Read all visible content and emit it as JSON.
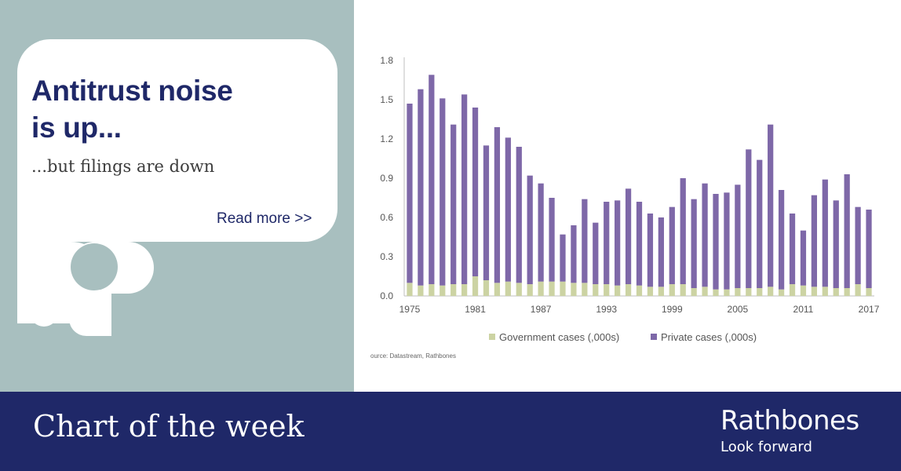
{
  "headline": "Antitrust noise\nis up...",
  "subheadline": "...but filings are down",
  "read_more": "Read more >>",
  "footer": {
    "title": "Chart of the week",
    "brand": "Rathbones",
    "tagline": "Look forward"
  },
  "colors": {
    "navy": "#1f2868",
    "panel": "#a8bfbf",
    "government": "#ccd3a3",
    "private": "#7e68a8"
  },
  "chart_data": {
    "type": "bar",
    "stacked": true,
    "categories": [
      1975,
      1976,
      1977,
      1978,
      1979,
      1980,
      1981,
      1982,
      1983,
      1984,
      1985,
      1986,
      1987,
      1988,
      1989,
      1990,
      1991,
      1992,
      1993,
      1994,
      1995,
      1996,
      1997,
      1998,
      1999,
      2000,
      2001,
      2002,
      2003,
      2004,
      2005,
      2006,
      2007,
      2008,
      2009,
      2010,
      2011,
      2012,
      2013,
      2014,
      2015,
      2016,
      2017
    ],
    "x_tick_labels": [
      "1975",
      "1981",
      "1987",
      "1993",
      "1999",
      "2005",
      "2011",
      "2017"
    ],
    "y_ticks": [
      "0.0",
      "0.3",
      "0.6",
      "0.9",
      "1.2",
      "1.5",
      "1.8"
    ],
    "ylim": [
      0,
      1.8
    ],
    "series": [
      {
        "name": "Government cases (,000s)",
        "color": "#ccd3a3",
        "values": [
          0.1,
          0.08,
          0.09,
          0.08,
          0.09,
          0.09,
          0.15,
          0.12,
          0.1,
          0.11,
          0.1,
          0.09,
          0.11,
          0.11,
          0.11,
          0.1,
          0.1,
          0.09,
          0.09,
          0.08,
          0.09,
          0.08,
          0.07,
          0.07,
          0.09,
          0.09,
          0.06,
          0.07,
          0.05,
          0.05,
          0.06,
          0.06,
          0.06,
          0.07,
          0.05,
          0.09,
          0.08,
          0.07,
          0.07,
          0.06,
          0.06,
          0.09,
          0.06
        ]
      },
      {
        "name": "Private cases (,000s)",
        "color": "#7e68a8",
        "values": [
          1.37,
          1.5,
          1.6,
          1.43,
          1.22,
          1.45,
          1.29,
          1.03,
          1.19,
          1.1,
          1.04,
          0.83,
          0.75,
          0.64,
          0.36,
          0.44,
          0.64,
          0.47,
          0.63,
          0.65,
          0.73,
          0.64,
          0.56,
          0.53,
          0.59,
          0.81,
          0.68,
          0.79,
          0.73,
          0.74,
          0.79,
          1.06,
          0.98,
          1.24,
          0.76,
          0.54,
          0.42,
          0.7,
          0.82,
          0.67,
          0.87,
          0.59,
          0.6
        ]
      }
    ],
    "legend_position": "bottom",
    "source": "ource: Datastream, Rathbones"
  }
}
